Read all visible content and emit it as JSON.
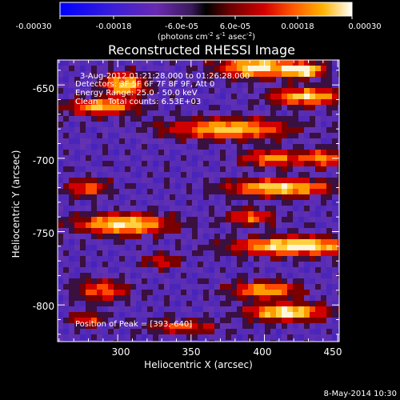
{
  "colorbar": {
    "ticks": [
      "-0.00030",
      "-0.00018",
      "-6.0e-05",
      "6.0e-05",
      "0.00018",
      "0.00030"
    ],
    "units_prefix": "(photons cm",
    "units_exp1": "-2",
    "units_mid": " s",
    "units_exp2": "-1",
    "units_mid2": " asec",
    "units_exp3": "-2",
    "units_suffix": ")",
    "range": [
      -0.0003,
      0.0003
    ]
  },
  "title": "Reconstructed RHESSI Image",
  "annotations": {
    "time": "3-Aug-2012 01:21:28.000 to 01:26:28.000",
    "detectors": "Detectors: 3F 5F 6F 7F 8F 9F, Att 0",
    "energy": "Energy Range: 25.0 - 50.0 keV",
    "clean": "Clean    Total counts: 6.53E+03",
    "peak": "Position of Peak = [393,-640]"
  },
  "axes": {
    "xlabel": "Heliocentric X (arcsec)",
    "ylabel": "Heliocentric Y (arcsec)",
    "xlim": [
      259,
      451
    ],
    "ylim": [
      -825,
      -633
    ],
    "xticks": [
      "300",
      "350",
      "400",
      "450"
    ],
    "xtick_values": [
      300,
      350,
      400,
      450
    ],
    "yticks": [
      "-650",
      "-700",
      "-750",
      "-800"
    ],
    "ytick_values": [
      -650,
      -700,
      -750,
      -800
    ]
  },
  "footer_date": "8-May-2014 10:30",
  "colors": {
    "background": "#000000",
    "foreground": "#ffffff"
  }
}
